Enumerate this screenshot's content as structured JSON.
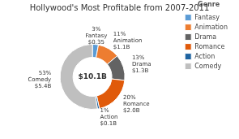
{
  "chart_data": {
    "type": "doughnut",
    "title": "Hollywood's Most Profitable from 2007-2011",
    "center_text": "$10.1B",
    "categories": [
      "Fantasy",
      "Animation",
      "Drama",
      "Romance",
      "Action",
      "Comedy"
    ],
    "values": [
      3,
      11,
      13,
      20,
      1,
      53
    ],
    "value_labels": [
      "3%",
      "11%",
      "13%",
      "20%",
      "1%",
      "53%"
    ],
    "amounts": [
      "$0.35",
      "$1.1B",
      "$1.3B",
      "$2.0B",
      "$0.1B",
      "$5.4B"
    ],
    "colors": [
      "#5B9BD5",
      "#ED7D31",
      "#636363",
      "#E05A0A",
      "#1E63A0",
      "#BFBFBF"
    ],
    "legend": "right",
    "legend_title": "Genre",
    "data_labels": true
  }
}
